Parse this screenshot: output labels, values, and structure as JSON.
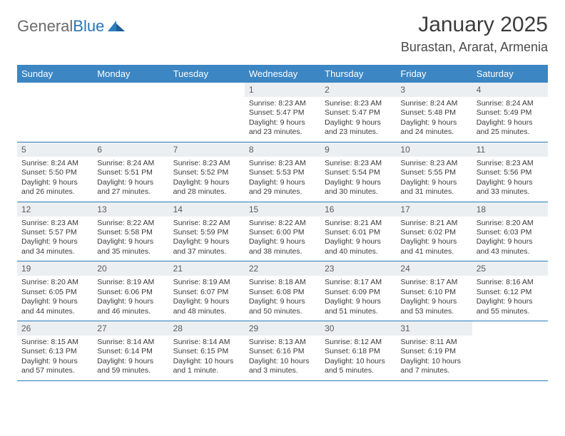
{
  "logo": {
    "word1": "General",
    "word2": "Blue",
    "mark_color": "#2b7cbf"
  },
  "title": "January 2025",
  "location": "Burastan, Ararat, Armenia",
  "colors": {
    "header_bg": "#3c86c3",
    "header_text": "#ffffff",
    "daynum_bg": "#eceff1",
    "row_border": "#2a7ab8",
    "body_text": "#3a3a3a"
  },
  "day_headers": [
    "Sunday",
    "Monday",
    "Tuesday",
    "Wednesday",
    "Thursday",
    "Friday",
    "Saturday"
  ],
  "weeks": [
    [
      {
        "n": "",
        "lines": []
      },
      {
        "n": "",
        "lines": []
      },
      {
        "n": "",
        "lines": []
      },
      {
        "n": "1",
        "lines": [
          "Sunrise: 8:23 AM",
          "Sunset: 5:47 PM",
          "Daylight: 9 hours",
          "and 23 minutes."
        ]
      },
      {
        "n": "2",
        "lines": [
          "Sunrise: 8:23 AM",
          "Sunset: 5:47 PM",
          "Daylight: 9 hours",
          "and 23 minutes."
        ]
      },
      {
        "n": "3",
        "lines": [
          "Sunrise: 8:24 AM",
          "Sunset: 5:48 PM",
          "Daylight: 9 hours",
          "and 24 minutes."
        ]
      },
      {
        "n": "4",
        "lines": [
          "Sunrise: 8:24 AM",
          "Sunset: 5:49 PM",
          "Daylight: 9 hours",
          "and 25 minutes."
        ]
      }
    ],
    [
      {
        "n": "5",
        "lines": [
          "Sunrise: 8:24 AM",
          "Sunset: 5:50 PM",
          "Daylight: 9 hours",
          "and 26 minutes."
        ]
      },
      {
        "n": "6",
        "lines": [
          "Sunrise: 8:24 AM",
          "Sunset: 5:51 PM",
          "Daylight: 9 hours",
          "and 27 minutes."
        ]
      },
      {
        "n": "7",
        "lines": [
          "Sunrise: 8:23 AM",
          "Sunset: 5:52 PM",
          "Daylight: 9 hours",
          "and 28 minutes."
        ]
      },
      {
        "n": "8",
        "lines": [
          "Sunrise: 8:23 AM",
          "Sunset: 5:53 PM",
          "Daylight: 9 hours",
          "and 29 minutes."
        ]
      },
      {
        "n": "9",
        "lines": [
          "Sunrise: 8:23 AM",
          "Sunset: 5:54 PM",
          "Daylight: 9 hours",
          "and 30 minutes."
        ]
      },
      {
        "n": "10",
        "lines": [
          "Sunrise: 8:23 AM",
          "Sunset: 5:55 PM",
          "Daylight: 9 hours",
          "and 31 minutes."
        ]
      },
      {
        "n": "11",
        "lines": [
          "Sunrise: 8:23 AM",
          "Sunset: 5:56 PM",
          "Daylight: 9 hours",
          "and 33 minutes."
        ]
      }
    ],
    [
      {
        "n": "12",
        "lines": [
          "Sunrise: 8:23 AM",
          "Sunset: 5:57 PM",
          "Daylight: 9 hours",
          "and 34 minutes."
        ]
      },
      {
        "n": "13",
        "lines": [
          "Sunrise: 8:22 AM",
          "Sunset: 5:58 PM",
          "Daylight: 9 hours",
          "and 35 minutes."
        ]
      },
      {
        "n": "14",
        "lines": [
          "Sunrise: 8:22 AM",
          "Sunset: 5:59 PM",
          "Daylight: 9 hours",
          "and 37 minutes."
        ]
      },
      {
        "n": "15",
        "lines": [
          "Sunrise: 8:22 AM",
          "Sunset: 6:00 PM",
          "Daylight: 9 hours",
          "and 38 minutes."
        ]
      },
      {
        "n": "16",
        "lines": [
          "Sunrise: 8:21 AM",
          "Sunset: 6:01 PM",
          "Daylight: 9 hours",
          "and 40 minutes."
        ]
      },
      {
        "n": "17",
        "lines": [
          "Sunrise: 8:21 AM",
          "Sunset: 6:02 PM",
          "Daylight: 9 hours",
          "and 41 minutes."
        ]
      },
      {
        "n": "18",
        "lines": [
          "Sunrise: 8:20 AM",
          "Sunset: 6:03 PM",
          "Daylight: 9 hours",
          "and 43 minutes."
        ]
      }
    ],
    [
      {
        "n": "19",
        "lines": [
          "Sunrise: 8:20 AM",
          "Sunset: 6:05 PM",
          "Daylight: 9 hours",
          "and 44 minutes."
        ]
      },
      {
        "n": "20",
        "lines": [
          "Sunrise: 8:19 AM",
          "Sunset: 6:06 PM",
          "Daylight: 9 hours",
          "and 46 minutes."
        ]
      },
      {
        "n": "21",
        "lines": [
          "Sunrise: 8:19 AM",
          "Sunset: 6:07 PM",
          "Daylight: 9 hours",
          "and 48 minutes."
        ]
      },
      {
        "n": "22",
        "lines": [
          "Sunrise: 8:18 AM",
          "Sunset: 6:08 PM",
          "Daylight: 9 hours",
          "and 50 minutes."
        ]
      },
      {
        "n": "23",
        "lines": [
          "Sunrise: 8:17 AM",
          "Sunset: 6:09 PM",
          "Daylight: 9 hours",
          "and 51 minutes."
        ]
      },
      {
        "n": "24",
        "lines": [
          "Sunrise: 8:17 AM",
          "Sunset: 6:10 PM",
          "Daylight: 9 hours",
          "and 53 minutes."
        ]
      },
      {
        "n": "25",
        "lines": [
          "Sunrise: 8:16 AM",
          "Sunset: 6:12 PM",
          "Daylight: 9 hours",
          "and 55 minutes."
        ]
      }
    ],
    [
      {
        "n": "26",
        "lines": [
          "Sunrise: 8:15 AM",
          "Sunset: 6:13 PM",
          "Daylight: 9 hours",
          "and 57 minutes."
        ]
      },
      {
        "n": "27",
        "lines": [
          "Sunrise: 8:14 AM",
          "Sunset: 6:14 PM",
          "Daylight: 9 hours",
          "and 59 minutes."
        ]
      },
      {
        "n": "28",
        "lines": [
          "Sunrise: 8:14 AM",
          "Sunset: 6:15 PM",
          "Daylight: 10 hours",
          "and 1 minute."
        ]
      },
      {
        "n": "29",
        "lines": [
          "Sunrise: 8:13 AM",
          "Sunset: 6:16 PM",
          "Daylight: 10 hours",
          "and 3 minutes."
        ]
      },
      {
        "n": "30",
        "lines": [
          "Sunrise: 8:12 AM",
          "Sunset: 6:18 PM",
          "Daylight: 10 hours",
          "and 5 minutes."
        ]
      },
      {
        "n": "31",
        "lines": [
          "Sunrise: 8:11 AM",
          "Sunset: 6:19 PM",
          "Daylight: 10 hours",
          "and 7 minutes."
        ]
      },
      {
        "n": "",
        "lines": []
      }
    ]
  ]
}
